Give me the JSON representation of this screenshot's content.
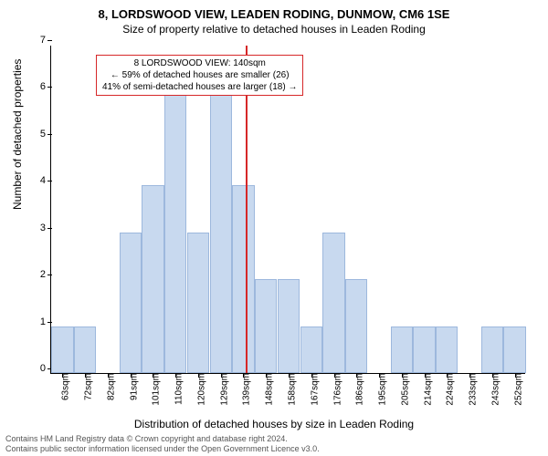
{
  "title": "8, LORDSWOOD VIEW, LEADEN RODING, DUNMOW, CM6 1SE",
  "subtitle": "Size of property relative to detached houses in Leaden Roding",
  "ylabel": "Number of detached properties",
  "xlabel": "Distribution of detached houses by size in Leaden Roding",
  "chart": {
    "type": "histogram",
    "categories": [
      "63sqm",
      "72sqm",
      "82sqm",
      "91sqm",
      "101sqm",
      "110sqm",
      "120sqm",
      "129sqm",
      "139sqm",
      "148sqm",
      "158sqm",
      "167sqm",
      "176sqm",
      "186sqm",
      "195sqm",
      "205sqm",
      "214sqm",
      "224sqm",
      "233sqm",
      "243sqm",
      "252sqm"
    ],
    "values": [
      1,
      1,
      0,
      3,
      4,
      6,
      3,
      6,
      4,
      2,
      2,
      1,
      3,
      2,
      0,
      1,
      1,
      1,
      0,
      1,
      1
    ],
    "bar_color": "#c8d9ef",
    "bar_border_color": "#9db8dd",
    "ylim": [
      0,
      7
    ],
    "ytick_step": 1,
    "background_color": "#ffffff",
    "vline": {
      "x_index": 8.1,
      "color": "#d62728"
    }
  },
  "annotation": {
    "line1": "8 LORDSWOOD VIEW: 140sqm",
    "line2": "← 59% of detached houses are smaller (26)",
    "line3": "41% of semi-detached houses are larger (18) →",
    "border_color": "#d62728"
  },
  "footer": {
    "line1": "Contains HM Land Registry data © Crown copyright and database right 2024.",
    "line2": "Contains public sector information licensed under the Open Government Licence v3.0."
  }
}
